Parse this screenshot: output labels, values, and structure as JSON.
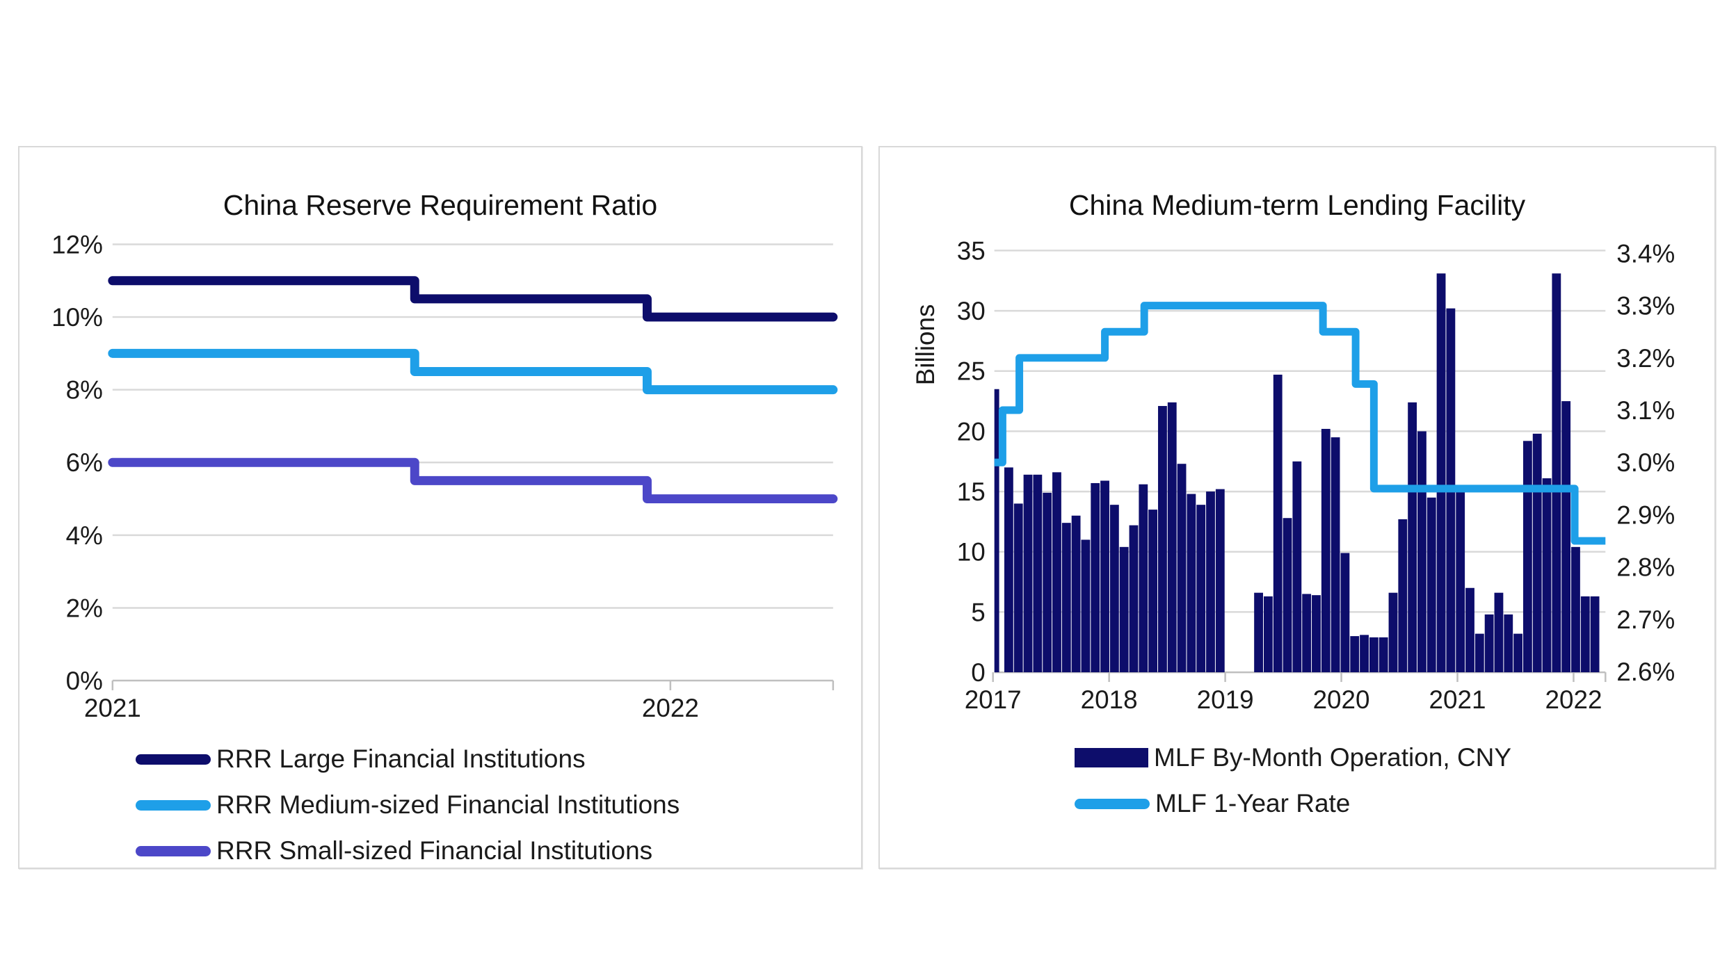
{
  "page": {
    "background": "#ffffff"
  },
  "chart_data": [
    {
      "type": "line",
      "title": "China Reserve Requirement Ratio",
      "ylabel": "",
      "y_ticks": [
        "12%",
        "10%",
        "8%",
        "6%",
        "4%",
        "2%",
        "0%"
      ],
      "ylim": [
        0,
        12
      ],
      "grid": true,
      "x_ticks": [
        "2021",
        "2022"
      ],
      "x_span_months": 15.5,
      "x_tick_months": [
        0,
        12
      ],
      "step_months": [
        0,
        6.5,
        11.5,
        15.5
      ],
      "legend_position": "bottom-left",
      "series": [
        {
          "name": "RRR Large Financial Institutions",
          "color": "#0D0D6B",
          "values": [
            11.0,
            10.5,
            10.0
          ]
        },
        {
          "name": "RRR Medium-sized Financial Institutions",
          "color": "#1E9FE8",
          "values": [
            9.0,
            8.5,
            8.0
          ]
        },
        {
          "name": "RRR Small-sized Financial Institutions",
          "color": "#4C47C8",
          "values": [
            6.0,
            5.5,
            5.0
          ]
        }
      ]
    },
    {
      "type": "bar+line",
      "title": "China Medium-term Lending Facility",
      "y_left": {
        "label": "Billions",
        "ticks": [
          "35",
          "30",
          "25",
          "20",
          "15",
          "10",
          "5",
          "0"
        ],
        "lim": [
          0,
          35
        ]
      },
      "y_right": {
        "ticks": [
          "3.4%",
          "3.3%",
          "3.2%",
          "3.1%",
          "3.0%",
          "2.9%",
          "2.8%",
          "2.7%",
          "2.6%"
        ],
        "lim": [
          2.6,
          3.4
        ]
      },
      "grid": true,
      "x_ticks": [
        "2017",
        "2018",
        "2019",
        "2020",
        "2021",
        "2022"
      ],
      "x_span_months": 63.6,
      "bars": {
        "name": "MLF By-Month Operation, CNY",
        "color": "#0D0D6B",
        "start": "2017-01",
        "values": [
          23.5,
          17.0,
          14.0,
          16.4,
          16.4,
          14.9,
          16.6,
          12.4,
          13.0,
          11.0,
          15.7,
          15.9,
          13.9,
          10.4,
          12.2,
          15.6,
          13.5,
          22.1,
          22.4,
          17.3,
          14.8,
          13.9,
          15.0,
          15.2,
          0,
          0,
          0,
          6.6,
          6.3,
          24.7,
          12.8,
          17.5,
          6.5,
          6.4,
          20.2,
          19.5,
          9.9,
          3.0,
          3.1,
          2.9,
          2.9,
          6.6,
          12.7,
          22.4,
          20.0,
          14.5,
          33.1,
          30.2,
          15.0,
          7.0,
          3.2,
          4.8,
          6.6,
          4.8,
          3.2,
          19.2,
          19.8,
          16.1,
          33.1,
          22.5,
          10.4,
          6.3,
          6.3
        ]
      },
      "rate_line": {
        "name": "MLF 1-Year Rate",
        "color": "#1E9FE8",
        "segments": [
          {
            "from_month": 0,
            "rate": 3.0
          },
          {
            "from_month": 0.85,
            "rate": 3.1
          },
          {
            "from_month": 2.6,
            "rate": 3.2
          },
          {
            "from_month": 11.5,
            "rate": 3.25
          },
          {
            "from_month": 15.6,
            "rate": 3.3
          },
          {
            "from_month": 34.2,
            "rate": 3.25
          },
          {
            "from_month": 37.6,
            "rate": 3.15
          },
          {
            "from_month": 39.5,
            "rate": 2.95
          },
          {
            "from_month": 60.4,
            "rate": 2.85
          }
        ],
        "end_month": 63.6
      }
    }
  ],
  "style": {
    "gridline_color": "#d9d9d9",
    "axis_color": "#bfbfbf",
    "text_color": "#1a1a1a"
  }
}
